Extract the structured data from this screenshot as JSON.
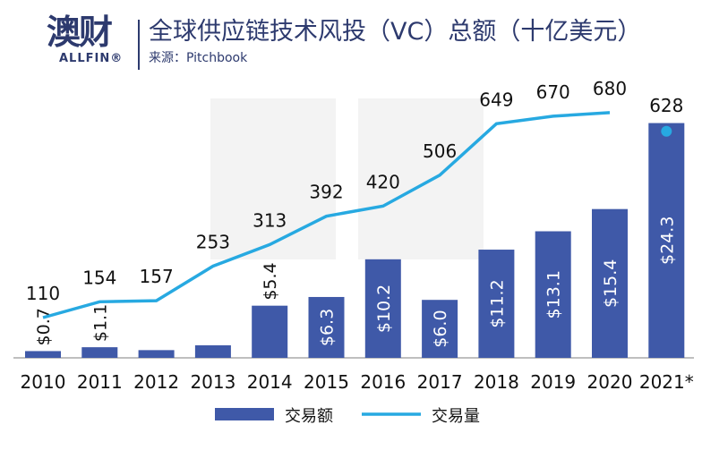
{
  "header": {
    "logo_cn": "澳财",
    "logo_en": "ALLFIN®",
    "title": "全球供应链技术风投（VC）总额（十亿美元）",
    "source": "来源：Pitchbook"
  },
  "colors": {
    "bar": "#3f59a8",
    "line": "#27a9e1",
    "brand": "#2d3a6e"
  },
  "chart_data": {
    "type": "bar+line",
    "categories": [
      "2010",
      "2011",
      "2012",
      "2013",
      "2014",
      "2015",
      "2016",
      "2017",
      "2018",
      "2019",
      "2020",
      "2021*"
    ],
    "series": [
      {
        "name": "交易额",
        "type": "bar",
        "values": [
          0.7,
          1.1,
          0.8,
          1.3,
          5.4,
          6.3,
          10.2,
          6.0,
          11.2,
          13.1,
          15.4,
          24.3
        ],
        "labels": [
          "$0.7",
          "$1.1",
          "",
          "",
          "$5.4",
          "$6.3",
          "$10.2",
          "$6.0",
          "$11.2",
          "$13.1",
          "$15.4",
          "$24.3"
        ]
      },
      {
        "name": "交易量",
        "type": "line",
        "values": [
          110,
          154,
          157,
          253,
          313,
          392,
          420,
          506,
          649,
          670,
          680,
          628
        ],
        "labels": [
          "110",
          "154",
          "157",
          "253",
          "313",
          "392",
          "420",
          "506",
          "649",
          "670",
          "680",
          "628"
        ]
      }
    ],
    "legend": "bottom",
    "grid": false
  }
}
